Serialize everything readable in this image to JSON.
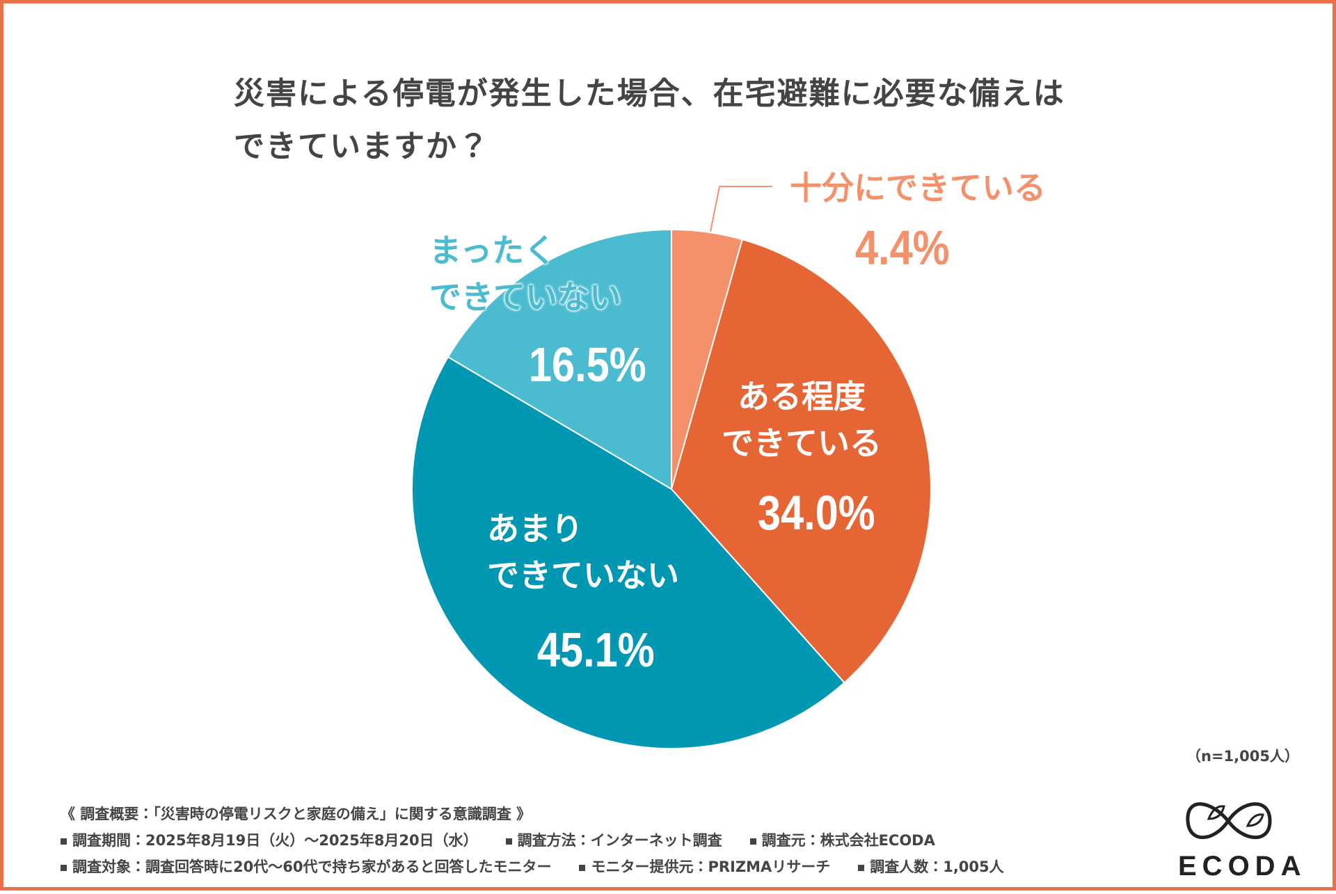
{
  "chart_data": {
    "type": "pie",
    "title": "災害による停電が発生した場合、在宅避難に必要な備えは\nできていますか？",
    "categories": [
      "十分にできている",
      "ある程度\nできている",
      "あまり\nできていない",
      "まったく\nできていない"
    ],
    "values": [
      4.4,
      34.0,
      45.1,
      16.5
    ],
    "value_labels": [
      "4.4%",
      "34.0%",
      "45.1%",
      "16.5%"
    ],
    "colors": [
      "#f4906a",
      "#e66535",
      "#0097b2",
      "#4bbbd0"
    ],
    "sample_note": "（n=1,005人）"
  },
  "notes": {
    "title": "《 調査概要：「災害時の停電リスクと家庭の備え」に関する意識調査 》",
    "rows": [
      [
        "調査期間：2025年8月19日（火）〜2025年8月20日（水）",
        "調査方法：インターネット調査",
        "調査元：株式会社ECODA"
      ],
      [
        "調査対象：調査回答時に20代〜60代で持ち家があると回答したモニター",
        "モニター提供元：PRIZMAリサーチ",
        "調査人数：1,005人"
      ]
    ]
  },
  "logo": "ECODA"
}
